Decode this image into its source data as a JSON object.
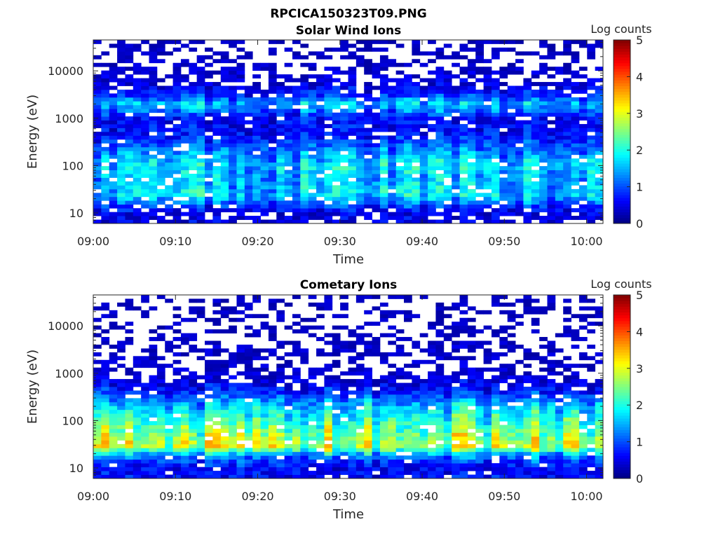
{
  "figure_title": "RPCICA150323T09.PNG",
  "colormap": [
    "#00007f",
    "#0000ff",
    "#0080ff",
    "#00ffff",
    "#80ff80",
    "#ffff00",
    "#ff8000",
    "#ff0000",
    "#7f0000"
  ],
  "chart_data": [
    {
      "type": "heatmap",
      "title": "Solar Wind Ions",
      "xlabel": "Time",
      "ylabel": "Energy (eV)",
      "y_scale": "log",
      "ylim": [
        6,
        45000
      ],
      "xlim": [
        "09:00",
        "10:02"
      ],
      "x_ticks": [
        "09:00",
        "09:10",
        "09:20",
        "09:30",
        "09:40",
        "09:50",
        "10:00"
      ],
      "y_ticks": [
        {
          "value": 10,
          "label": "10"
        },
        {
          "value": 100,
          "label": "100"
        },
        {
          "value": 1000,
          "label": "1000"
        },
        {
          "value": 10000,
          "label": "10000"
        }
      ],
      "colorbar": {
        "label": "Log counts",
        "range": [
          0,
          5
        ],
        "ticks": [
          "0",
          "1",
          "2",
          "3",
          "4",
          "5"
        ]
      },
      "energy_band_profile": [
        {
          "energy_ev": 10,
          "log_counts": 0.4
        },
        {
          "energy_ev": 25,
          "log_counts": 1.6
        },
        {
          "energy_ev": 50,
          "log_counts": 1.4
        },
        {
          "energy_ev": 100,
          "log_counts": 1.6
        },
        {
          "energy_ev": 200,
          "log_counts": 1.2
        },
        {
          "energy_ev": 500,
          "log_counts": 0.6
        },
        {
          "energy_ev": 1000,
          "log_counts": 0.6
        },
        {
          "energy_ev": 2000,
          "log_counts": 1.5
        },
        {
          "energy_ev": 3000,
          "log_counts": 0.8
        },
        {
          "energy_ev": 6000,
          "log_counts": 0.3
        },
        {
          "energy_ev": 20000,
          "log_counts": 0.1
        }
      ],
      "peak_log_counts": 2.9
    },
    {
      "type": "heatmap",
      "title": "Cometary Ions",
      "xlabel": "Time",
      "ylabel": "Energy (eV)",
      "y_scale": "log",
      "ylim": [
        6,
        45000
      ],
      "xlim": [
        "09:00",
        "10:02"
      ],
      "x_ticks": [
        "09:00",
        "09:10",
        "09:20",
        "09:30",
        "09:40",
        "09:50",
        "10:00"
      ],
      "y_ticks": [
        {
          "value": 10,
          "label": "10"
        },
        {
          "value": 100,
          "label": "100"
        },
        {
          "value": 1000,
          "label": "1000"
        },
        {
          "value": 10000,
          "label": "10000"
        }
      ],
      "colorbar": {
        "label": "Log counts",
        "range": [
          0,
          5
        ],
        "ticks": [
          "0",
          "1",
          "2",
          "3",
          "4",
          "5"
        ]
      },
      "energy_band_profile": [
        {
          "energy_ev": 10,
          "log_counts": 0.6
        },
        {
          "energy_ev": 18,
          "log_counts": 1.2
        },
        {
          "energy_ev": 30,
          "log_counts": 2.9
        },
        {
          "energy_ev": 60,
          "log_counts": 2.4
        },
        {
          "energy_ev": 100,
          "log_counts": 2.1
        },
        {
          "energy_ev": 200,
          "log_counts": 1.6
        },
        {
          "energy_ev": 400,
          "log_counts": 0.8
        },
        {
          "energy_ev": 1000,
          "log_counts": 0.2
        },
        {
          "energy_ev": 3000,
          "log_counts": 0.2
        },
        {
          "energy_ev": 6000,
          "log_counts": 0.1
        }
      ],
      "peak_log_counts": 3.6
    }
  ]
}
